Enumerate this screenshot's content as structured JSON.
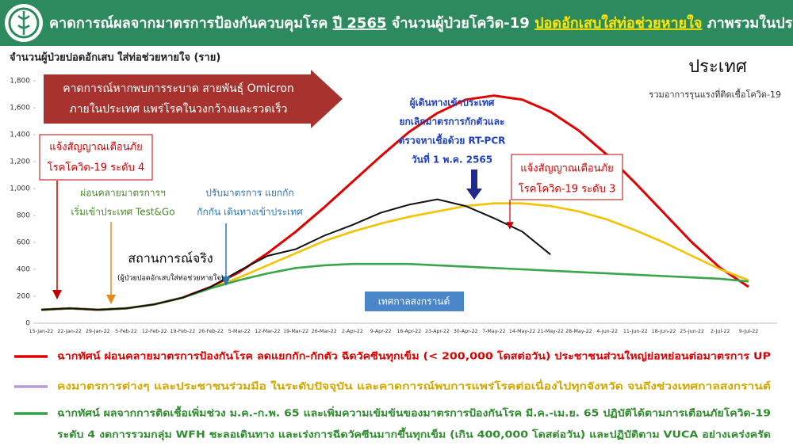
{
  "header": {
    "title_parts": [
      {
        "text": "คาดการณ์ผลจากมาตรการป้องกันควบคุมโรค ",
        "color": "#ffffff",
        "underline": false
      },
      {
        "text": "ปี 2565",
        "color": "#ffffff",
        "underline": true
      },
      {
        "text": " จำนวนผู้ป่วยโควิด-19 ",
        "color": "#ffffff",
        "underline": false
      },
      {
        "text": "ปอดอักเสบใส่ท่อช่วยหายใจ",
        "color": "#ffe600",
        "underline": true
      },
      {
        "text": " ภาพรวมในประเทศ",
        "color": "#ffffff",
        "underline": false
      }
    ]
  },
  "chart_data": {
    "type": "line",
    "y_label": "จำนวนผู้ป่วยปอดอักเสบ ใส่ท่อช่วยหายใจ (ราย)",
    "region_title": "ประเทศ",
    "region_subtitle": "รวมอาการรุนแรงที่ติดเชื้อโควิด-19",
    "x": [
      "15-Jan-22",
      "22-Jan-22",
      "29-Jan-22",
      "5-Feb-22",
      "12-Feb-22",
      "19-Feb-22",
      "26-Feb-22",
      "5-Mar-22",
      "12-Mar-22",
      "19-Mar-22",
      "26-Mar-22",
      "2-Apr-22",
      "9-Apr-22",
      "16-Apr-22",
      "23-Apr-22",
      "30-Apr-22",
      "7-May-22",
      "14-May-22",
      "21-May-22",
      "28-May-22",
      "4-Jun-22",
      "11-Jun-22",
      "18-Jun-22",
      "25-Jun-22",
      "2-Jul-22",
      "9-Jul-22"
    ],
    "ylim": [
      0,
      1800
    ],
    "yticks": [
      0,
      200,
      400,
      600,
      800,
      {
        "value": 1000,
        "label": "1,000"
      },
      {
        "value": 1200,
        "label": "1,200"
      },
      {
        "value": 1400,
        "label": "1,400"
      },
      {
        "value": 1600,
        "label": "1,600"
      },
      {
        "value": 1800,
        "label": "1,800"
      }
    ],
    "series": [
      {
        "color": "#e00000",
        "values": [
          100,
          110,
          100,
          110,
          140,
          190,
          270,
          380,
          520,
          680,
          860,
          1050,
          1240,
          1420,
          1560,
          1660,
          1690,
          1660,
          1570,
          1430,
          1250,
          1040,
          820,
          600,
          410,
          270
        ]
      },
      {
        "color": "#f5c200",
        "values": [
          100,
          110,
          100,
          110,
          140,
          190,
          260,
          340,
          430,
          520,
          610,
          680,
          740,
          790,
          830,
          870,
          890,
          890,
          870,
          830,
          770,
          690,
          600,
          500,
          400,
          320
        ]
      },
      {
        "color": "#3aa64a",
        "values": [
          100,
          110,
          100,
          110,
          140,
          190,
          260,
          320,
          370,
          410,
          430,
          440,
          440,
          440,
          430,
          420,
          410,
          400,
          390,
          380,
          370,
          360,
          350,
          340,
          330,
          310
        ]
      },
      {
        "color": "#111111",
        "values": [
          100,
          110,
          100,
          110,
          140,
          190,
          270,
          390,
          500,
          550,
          650,
          730,
          820,
          880,
          920,
          870,
          780,
          680,
          510,
          null,
          null,
          null,
          null,
          null,
          null,
          null
        ]
      }
    ],
    "annotations": [
      {
        "lines": [
          "คาดการณ์หากพบการระบาด สายพันธุ์ Omicron",
          "ภายในประเทศ แพร่โรคในวงกว้างและรวดเร็ว"
        ]
      },
      {
        "lines": [
          "แจ้งสัญญาณเตือนภัย",
          "โรคโควิด-19 ระดับ 4"
        ]
      },
      {
        "lines": [
          "ผ่อนคลายมาตรการฯ",
          "เริ่มเข้าประเทศ Test&Go"
        ]
      },
      {
        "lines": [
          "ปรับมาตรการ แยกกัก",
          "กักกัน เดินทางเข้าประเทศ"
        ]
      },
      {
        "lines": [
          "สถานการณ์จริง",
          "(ผู้ป่วยปอดอักเสบใส่ท่อช่วยหายใจ)"
        ]
      },
      {
        "lines": [
          "ผู้เดินทางเข้าประเทศ",
          "ยกเลิกมาตรการกักตัวและ",
          "ตรวจหาเชื้อด้วย RT-PCR",
          "วันที่ 1 พ.ค. 2565"
        ]
      },
      {
        "lines": [
          "แจ้งสัญญาณเตือนภัย",
          "โรคโควิด-19 ระดับ 3"
        ]
      },
      {
        "lines": [
          "เทศกาลสงกรานต์"
        ]
      }
    ],
    "legend": [
      {
        "color": "#e00000",
        "text_color": "#e00000",
        "lines": [
          "ฉากทัศน์ ผ่อนคลายมาตรการป้องกันโรค ลดแยกกัก-กักตัว ฉีดวัคซีนทุกเข็ม (< 200,000 โดสต่อวัน) ประชาชนส่วนใหญ่ย่อหย่อนต่อมาตรการ UP"
        ]
      },
      {
        "color": "#b59bd6",
        "text_color": "#d4a800",
        "lines": [
          "คงมาตรการต่างๆ และประชาชนร่วมมือ ในระดับปัจจุบัน และคาดการณ์พบการแพร่โรคต่อเนื่องไปทุกจังหวัด จนถึงช่วงเทศกาลสงกรานต์"
        ]
      },
      {
        "color": "#2ea043",
        "text_color": "#2e8b2e",
        "lines": [
          "ฉากทัศน์ ผลจากการติดเชื้อเพิ่มช่วง ม.ค.-ก.พ. 65 และเพิ่มความเข้มข้นของมาตรการป้องกันโรค มี.ค.-เม.ย. 65 ปฏิบัติได้ตามการเตือนภัยโควิด-19",
          "ระดับ 4 งดการรวมกลุ่ม WFH ชะลอเดินทาง และเร่งการฉีดวัคซีนมากขึ้นทุกเข็ม (เกิน 400,000 โดสต่อวัน) และปฏิบัติตาม VUCA อย่างเคร่งครัด"
        ]
      }
    ]
  }
}
